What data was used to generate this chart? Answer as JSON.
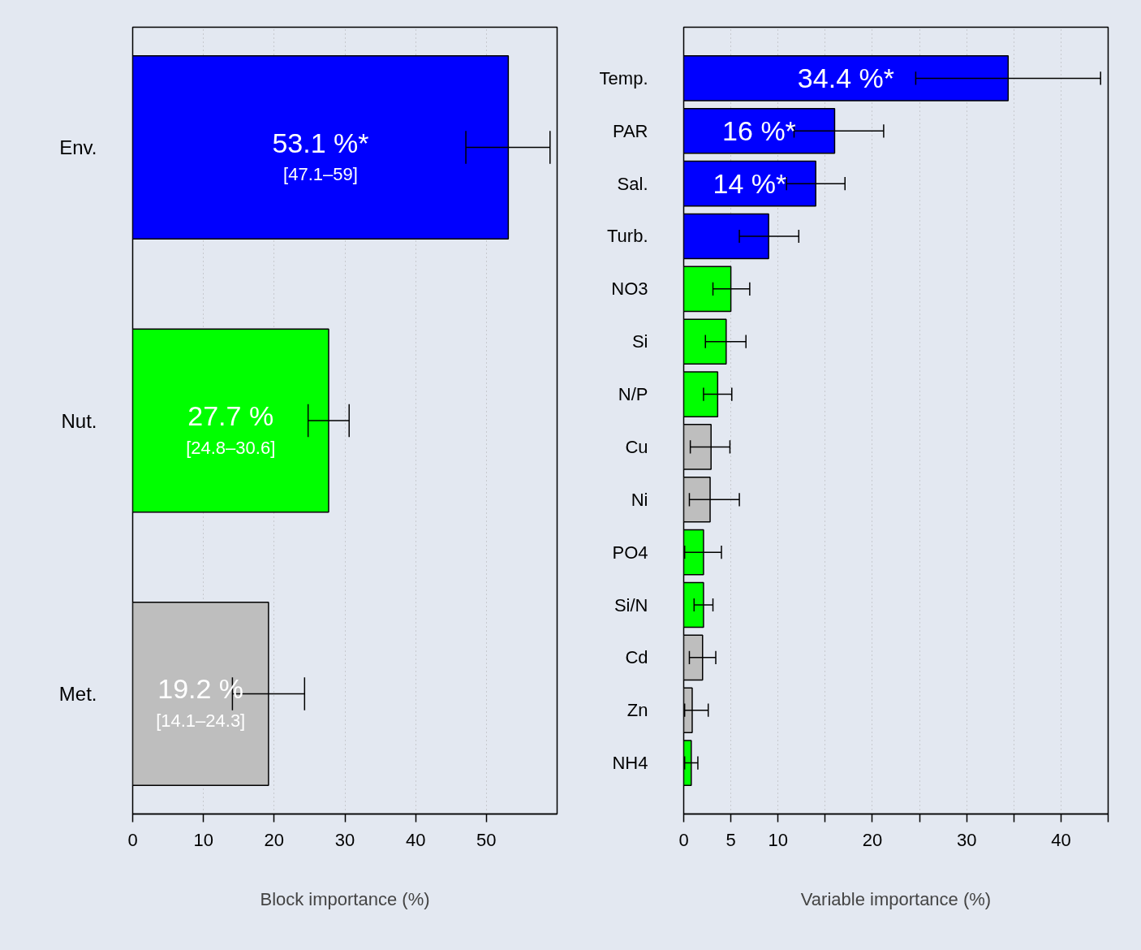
{
  "chart_data": [
    {
      "type": "bar",
      "orientation": "horizontal",
      "categories": [
        "Env.",
        "Nut.",
        "Met."
      ],
      "values": [
        53.1,
        27.7,
        19.2
      ],
      "colors": [
        "#0000ff",
        "#00ff00",
        "#bebebe"
      ],
      "errors": [
        [
          47.1,
          59
        ],
        [
          24.8,
          30.6
        ],
        [
          14.1,
          24.3
        ]
      ],
      "value_labels": [
        "53.1 %*",
        "27.7 %",
        "19.2 %"
      ],
      "annotations": [
        "[47.1–59]",
        "[24.8–30.6]",
        "[14.1–24.3]"
      ],
      "xlabel": "Block importance (%)",
      "xlim": [
        0,
        60
      ],
      "xticks": [
        0,
        10,
        20,
        30,
        40,
        50
      ],
      "grid": "x"
    },
    {
      "type": "bar",
      "orientation": "horizontal",
      "categories": [
        "Temp.",
        "PAR",
        "Sal.",
        "Turb.",
        "NO3",
        "Si",
        "N/P",
        "Cu",
        "Ni",
        "PO4",
        "Si/N",
        "Cd",
        "Zn",
        "NH4"
      ],
      "values": [
        34.4,
        16,
        14,
        9.0,
        5.0,
        4.5,
        3.6,
        2.9,
        2.8,
        2.1,
        2.1,
        2.0,
        0.9,
        0.8
      ],
      "colors": [
        "#0000ff",
        "#0000ff",
        "#0000ff",
        "#0000ff",
        "#00ff00",
        "#00ff00",
        "#00ff00",
        "#bebebe",
        "#bebebe",
        "#00ff00",
        "#00ff00",
        "#bebebe",
        "#bebebe",
        "#00ff00"
      ],
      "errors": [
        [
          24.6,
          44.2
        ],
        [
          11.7,
          21.2
        ],
        [
          10.9,
          17.1
        ],
        [
          5.9,
          12.2
        ],
        [
          3.1,
          7.0
        ],
        [
          2.3,
          6.6
        ],
        [
          2.1,
          5.1
        ],
        [
          0.7,
          4.9
        ],
        [
          0.6,
          5.9
        ],
        [
          0.1,
          4.0
        ],
        [
          1.1,
          3.1
        ],
        [
          0.6,
          3.4
        ],
        [
          0.1,
          2.6
        ],
        [
          0.1,
          1.5
        ]
      ],
      "value_labels": [
        "34.4 %*",
        "16 %*",
        "14 %*",
        null,
        null,
        null,
        null,
        null,
        null,
        null,
        null,
        null,
        null,
        null
      ],
      "xlabel": "Variable importance (%)",
      "xlim": [
        0,
        45
      ],
      "xticks": [
        0,
        5,
        10,
        {
          "value": 15,
          "label": null
        },
        20,
        {
          "value": 25,
          "label": null
        },
        30,
        {
          "value": 35,
          "label": null
        },
        40,
        {
          "value": 45,
          "label": null
        }
      ],
      "grid": "x"
    }
  ]
}
